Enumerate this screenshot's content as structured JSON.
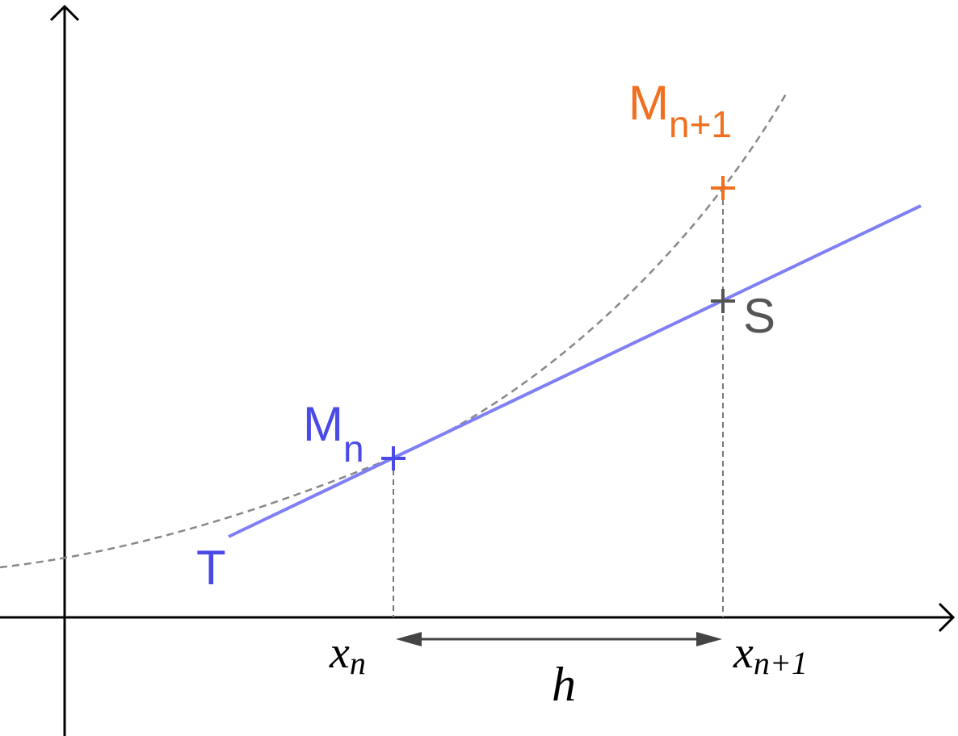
{
  "labels": {
    "m_next": {
      "text": "M",
      "sub": "n+1"
    },
    "m_n": {
      "text": "M",
      "sub": "n"
    },
    "tangent": "T",
    "s": "S",
    "x_n": {
      "text": "x",
      "sub": "n"
    },
    "x_next": {
      "text": "x",
      "sub": "n+1"
    },
    "step": "h"
  }
}
